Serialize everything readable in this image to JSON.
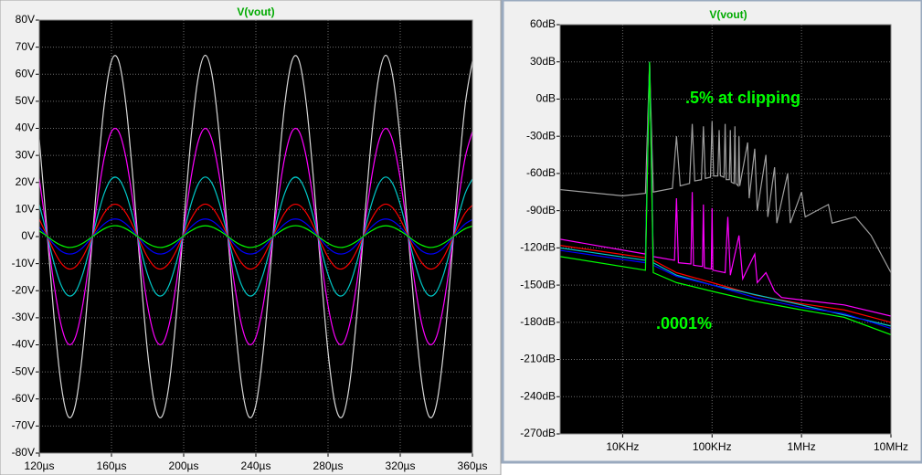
{
  "chart_data": [
    {
      "type": "line",
      "title": "V(vout)",
      "title_color": "#00aa00",
      "grid": true,
      "xscale": "linear",
      "smooth": true,
      "xlim": [
        120,
        360
      ],
      "ylim": [
        -80,
        80
      ],
      "xticks": [
        {
          "value": 120,
          "label": "120µs"
        },
        {
          "value": 160,
          "label": "160µs"
        },
        {
          "value": 200,
          "label": "200µs"
        },
        {
          "value": 240,
          "label": "240µs"
        },
        {
          "value": 280,
          "label": "280µs"
        },
        {
          "value": 320,
          "label": "320µs"
        },
        {
          "value": 360,
          "label": "360µs"
        }
      ],
      "yticks": [
        {
          "value": 80,
          "label": "80V"
        },
        {
          "value": 70,
          "label": "70V"
        },
        {
          "value": 60,
          "label": "60V"
        },
        {
          "value": 50,
          "label": "50V"
        },
        {
          "value": 40,
          "label": "40V"
        },
        {
          "value": 30,
          "label": "30V"
        },
        {
          "value": 20,
          "label": "20V"
        },
        {
          "value": 10,
          "label": "10V"
        },
        {
          "value": 0,
          "label": "0V"
        },
        {
          "value": -10,
          "label": "-10V"
        },
        {
          "value": -20,
          "label": "-20V"
        },
        {
          "value": -30,
          "label": "-30V"
        },
        {
          "value": -40,
          "label": "-40V"
        },
        {
          "value": -50,
          "label": "-50V"
        },
        {
          "value": -60,
          "label": "-60V"
        },
        {
          "value": -70,
          "label": "-70V"
        },
        {
          "value": -80,
          "label": "-80V"
        }
      ],
      "x": [
        120,
        124,
        128,
        132,
        136,
        140,
        144,
        148,
        152,
        156,
        160,
        164,
        168,
        172,
        176,
        180,
        184,
        188,
        192,
        196,
        200,
        204,
        208,
        212,
        216,
        220,
        224,
        228,
        232,
        236,
        240,
        244,
        248,
        252,
        256,
        260,
        264,
        268,
        272,
        276,
        280,
        284,
        288,
        292,
        296,
        300,
        304,
        308,
        312,
        316,
        320,
        324,
        328,
        332,
        336,
        340,
        344,
        348,
        352,
        356,
        360
      ],
      "series": [
        {
          "color": "#d8d8d8",
          "values": [
            35.9,
            4.2,
            -28.5,
            -54.2,
            -66.5,
            -62.3,
            -42.7,
            -12.5,
            20.7,
            48.8,
            64.9,
            64.9,
            48.8,
            20.7,
            -12.5,
            -42.7,
            -62.3,
            -66.5,
            -54.2,
            -28.5,
            4.2,
            35.9,
            58.7,
            67,
            58.7,
            35.9,
            4.2,
            -28.5,
            -54.2,
            -66.5,
            -62.3,
            -42.7,
            -12.5,
            20.7,
            48.8,
            64.9,
            64.9,
            48.8,
            20.7,
            -12.5,
            -42.7,
            -62.3,
            -66.5,
            -54.2,
            -28.5,
            4.2,
            35.9,
            58.7,
            67,
            58.7,
            35.9,
            4.2,
            -28.5,
            -54.2,
            -66.5,
            -62.3,
            -42.7,
            -12.5,
            20.7,
            48.8,
            64.9
          ]
        },
        {
          "color": "#ff00ff",
          "values": [
            21.4,
            2.5,
            -17,
            -32.4,
            -39.7,
            -37.2,
            -25.5,
            -7.5,
            12.4,
            29.2,
            38.8,
            38.8,
            29.2,
            12.4,
            -7.5,
            -25.5,
            -37.2,
            -39.7,
            -32.4,
            -17,
            2.5,
            21.4,
            35,
            40,
            35,
            21.4,
            2.5,
            -17,
            -32.4,
            -39.7,
            -37.2,
            -25.5,
            -7.5,
            12.4,
            29.2,
            38.8,
            38.8,
            29.2,
            12.4,
            -7.5,
            -25.5,
            -37.2,
            -39.7,
            -32.4,
            -17,
            2.5,
            21.4,
            35,
            40,
            35,
            21.4,
            2.5,
            -17,
            -32.4,
            -39.7,
            -37.2,
            -25.5,
            -7.5,
            12.4,
            29.2,
            38.8
          ]
        },
        {
          "color": "#00c8c8",
          "values": [
            11.8,
            1.4,
            -9.4,
            -17.8,
            -21.8,
            -20.5,
            -14,
            -4.1,
            6.8,
            16,
            21.3,
            21.3,
            16,
            6.8,
            -4.1,
            -14,
            -20.5,
            -21.8,
            -17.8,
            -9.4,
            1.4,
            11.8,
            19.3,
            22,
            19.3,
            11.8,
            1.4,
            -9.4,
            -17.8,
            -21.8,
            -20.5,
            -14,
            -4.1,
            6.8,
            16,
            21.3,
            21.3,
            16,
            6.8,
            -4.1,
            -14,
            -20.5,
            -21.8,
            -17.8,
            -9.4,
            1.4,
            11.8,
            19.3,
            22,
            19.3,
            11.8,
            1.4,
            -9.4,
            -17.8,
            -21.8,
            -20.5,
            -14,
            -4.1,
            6.8,
            16,
            21.3
          ]
        },
        {
          "color": "#ff0000",
          "values": [
            6.4,
            0.8,
            -5.1,
            -9.7,
            -11.9,
            -11.2,
            -7.6,
            -2.2,
            3.7,
            8.7,
            11.6,
            11.6,
            8.7,
            3.7,
            -2.2,
            -7.6,
            -11.2,
            -11.9,
            -9.7,
            -5.1,
            0.8,
            6.4,
            10.5,
            12,
            10.5,
            6.4,
            0.8,
            -5.1,
            -9.7,
            -11.9,
            -11.2,
            -7.6,
            -2.2,
            3.7,
            8.7,
            11.6,
            11.6,
            8.7,
            3.7,
            -2.2,
            -7.6,
            -11.2,
            -11.9,
            -9.7,
            -5.1,
            0.8,
            6.4,
            10.5,
            12,
            10.5,
            6.4,
            0.8,
            -5.1,
            -9.7,
            -11.9,
            -11.2,
            -7.6,
            -2.2,
            3.7,
            8.7,
            11.6
          ]
        },
        {
          "color": "#0000ff",
          "values": [
            3.5,
            0.4,
            -2.8,
            -5.3,
            -6.4,
            -6,
            -4.1,
            -1.2,
            2,
            4.7,
            6.3,
            6.3,
            4.7,
            2,
            -1.2,
            -4.1,
            -6,
            -6.4,
            -5.3,
            -2.8,
            0.4,
            3.5,
            5.7,
            6.5,
            5.7,
            3.5,
            0.4,
            -2.8,
            -5.3,
            -6.4,
            -6,
            -4.1,
            -1.2,
            2,
            4.7,
            6.3,
            6.3,
            4.7,
            2,
            -1.2,
            -4.1,
            -6,
            -6.4,
            -5.3,
            -2.8,
            0.4,
            3.5,
            5.7,
            6.5,
            5.7,
            3.5,
            0.4,
            -2.8,
            -5.3,
            -6.4,
            -6,
            -4.1,
            -1.2,
            2,
            4.7,
            6.3
          ]
        },
        {
          "color": "#00ff00",
          "values": [
            2.1,
            0.3,
            -1.7,
            -3.2,
            -4,
            -3.7,
            -2.5,
            -0.7,
            1.2,
            2.9,
            3.9,
            3.9,
            2.9,
            1.2,
            -0.7,
            -2.5,
            -3.7,
            -4,
            -3.2,
            -1.7,
            0.3,
            2.1,
            3.5,
            4,
            3.5,
            2.1,
            0.3,
            -1.7,
            -3.2,
            -4,
            -3.7,
            -2.5,
            -0.7,
            1.2,
            2.9,
            3.9,
            3.9,
            2.9,
            1.2,
            -0.7,
            -2.5,
            -3.7,
            -4,
            -3.2,
            -1.7,
            0.3,
            2.1,
            3.5,
            4,
            3.5,
            2.1,
            0.3,
            -1.7,
            -3.2,
            -4,
            -3.7,
            -2.5,
            -0.7,
            1.2,
            2.9,
            3.9
          ]
        }
      ]
    },
    {
      "type": "line",
      "title": "V(vout)",
      "title_color": "#00aa00",
      "grid": true,
      "xscale": "log",
      "smooth": false,
      "xlim": [
        2000,
        10000000
      ],
      "ylim": [
        -270,
        60
      ],
      "xticks": [
        {
          "value": 10000,
          "label": "10KHz"
        },
        {
          "value": 100000,
          "label": "100KHz"
        },
        {
          "value": 1000000,
          "label": "1MHz"
        },
        {
          "value": 10000000,
          "label": "10MHz"
        }
      ],
      "yticks": [
        {
          "value": 60,
          "label": "60dB"
        },
        {
          "value": 30,
          "label": "30dB"
        },
        {
          "value": 0,
          "label": "0dB"
        },
        {
          "value": -30,
          "label": "-30dB"
        },
        {
          "value": -60,
          "label": "-60dB"
        },
        {
          "value": -90,
          "label": "-90dB"
        },
        {
          "value": -120,
          "label": "-120dB"
        },
        {
          "value": -150,
          "label": "-150dB"
        },
        {
          "value": -180,
          "label": "-180dB"
        },
        {
          "value": -210,
          "label": "-210dB"
        },
        {
          "value": -240,
          "label": "-240dB"
        },
        {
          "value": -270,
          "label": "-270dB"
        }
      ],
      "annotations": [
        {
          "text": ".5% at clipping",
          "color": "#00ff00"
        },
        {
          "text": ".0001%",
          "color": "#00ff00"
        }
      ],
      "series": [
        {
          "color": "#a0a0a0",
          "x": [
            2000,
            10000,
            18000,
            20000,
            22000,
            36000,
            40000,
            44000,
            56000,
            60000,
            64000,
            76000,
            80000,
            84000,
            96000,
            100000,
            104000,
            116000,
            120000,
            124000,
            136000,
            140000,
            144000,
            156000,
            160000,
            164000,
            176000,
            180000,
            184000,
            196000,
            200000,
            204000,
            250000,
            260000,
            300000,
            320000,
            400000,
            420000,
            500000,
            530000,
            700000,
            750000,
            1000000,
            1100000,
            2000000,
            2200000,
            4000000,
            6000000,
            10000000
          ],
          "values": [
            -73,
            -78,
            -76,
            30,
            -75,
            -72,
            -30,
            -70,
            -68,
            -20,
            -66,
            -65,
            -22,
            -64,
            -63,
            -18,
            -62,
            -62,
            -25,
            -62,
            -63,
            -20,
            -65,
            -65,
            -25,
            -67,
            -68,
            -22,
            -68,
            -70,
            -30,
            -70,
            -35,
            -80,
            -40,
            -90,
            -45,
            -95,
            -55,
            -100,
            -60,
            -100,
            -75,
            -95,
            -85,
            -100,
            -95,
            -110,
            -140
          ]
        },
        {
          "color": "#ff00ff",
          "x": [
            2000,
            18000,
            20000,
            22000,
            38000,
            40000,
            42000,
            58000,
            60000,
            62000,
            78000,
            80000,
            82000,
            98000,
            100000,
            102000,
            140000,
            150000,
            160000,
            200000,
            220000,
            300000,
            320000,
            400000,
            500000,
            600000,
            1000000,
            3000000,
            10000000
          ],
          "values": [
            -113,
            -125,
            30,
            -127,
            -130,
            -80,
            -132,
            -133,
            -75,
            -134,
            -135,
            -85,
            -136,
            -137,
            -88,
            -138,
            -140,
            -95,
            -142,
            -110,
            -145,
            -125,
            -148,
            -140,
            -155,
            -160,
            -162,
            -166,
            -175
          ]
        },
        {
          "color": "#ff0000",
          "x": [
            2000,
            18000,
            20000,
            22000,
            40000,
            100000,
            300000,
            1000000,
            3000000,
            10000000
          ],
          "values": [
            -118,
            -128,
            30,
            -130,
            -140,
            -148,
            -158,
            -165,
            -170,
            -180
          ]
        },
        {
          "color": "#00c8c8",
          "x": [
            2000,
            18000,
            20000,
            22000,
            40000,
            100000,
            1000000,
            10000000
          ],
          "values": [
            -120,
            -130,
            30,
            -132,
            -142,
            -150,
            -166,
            -183
          ]
        },
        {
          "color": "#0000ff",
          "x": [
            2000,
            18000,
            20000,
            22000,
            40000,
            100000,
            300000,
            1000000,
            3000000,
            10000000
          ],
          "values": [
            -122,
            -132,
            30,
            -134,
            -143,
            -150,
            -160,
            -168,
            -173,
            -185
          ]
        },
        {
          "color": "#00ff00",
          "x": [
            2000,
            18000,
            20000,
            22000,
            40000,
            100000,
            300000,
            1000000,
            3000000,
            10000000
          ],
          "values": [
            -127,
            -138,
            30,
            -140,
            -148,
            -155,
            -163,
            -170,
            -176,
            -190
          ]
        }
      ]
    }
  ]
}
